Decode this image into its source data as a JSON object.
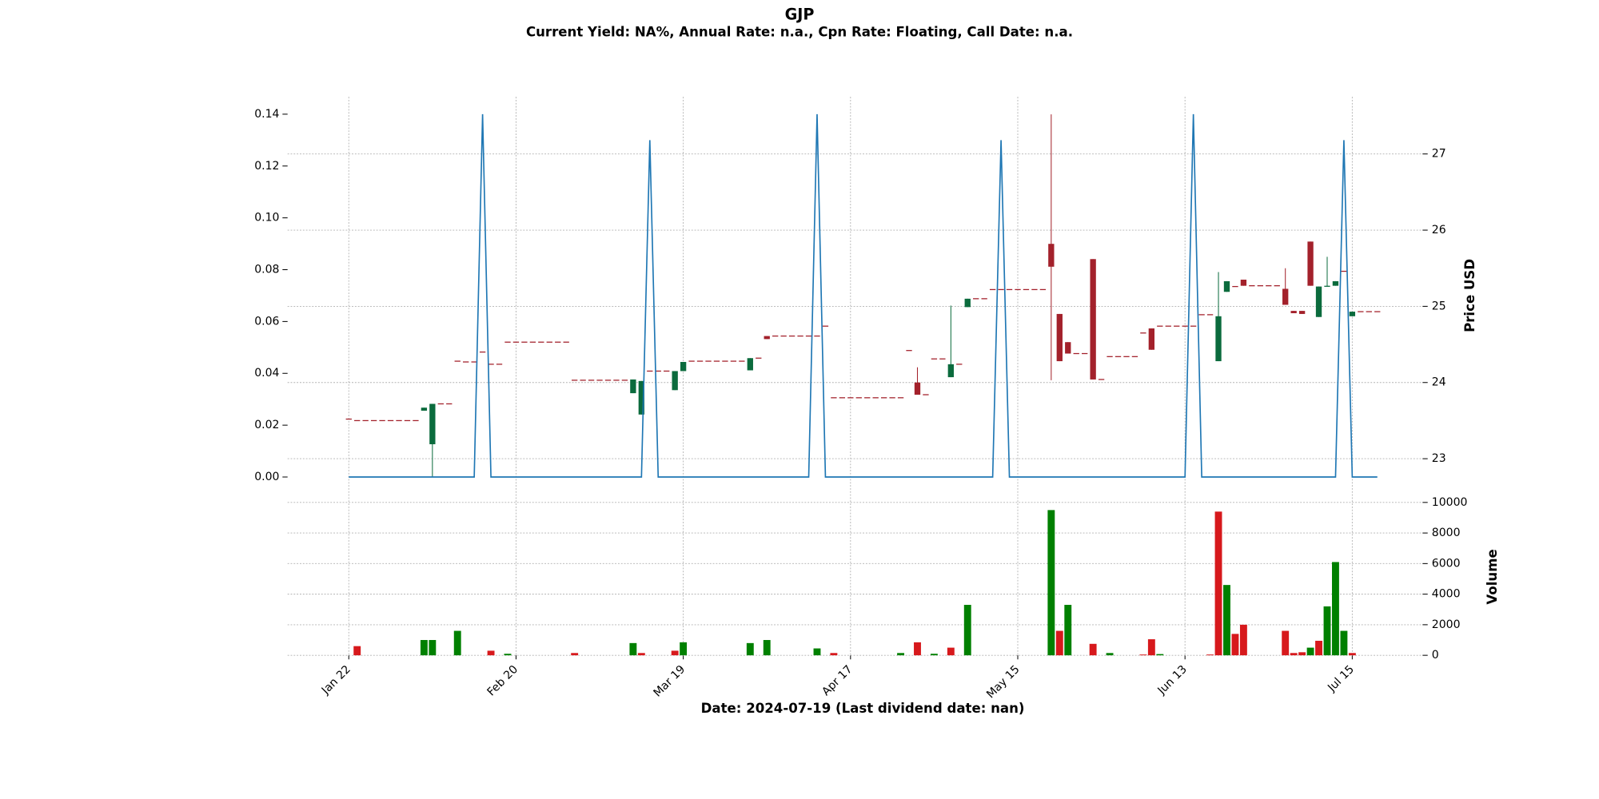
{
  "chart_data": [
    {
      "type": "candlestick",
      "title": "GJP",
      "subtitle": "Current Yield: NA%, Annual Rate: n.a., Cpn Rate: Floating, Call Date: n.a.",
      "y2label": "Price USD",
      "up_color": "#0b6b3d",
      "down_color": "#a3212b",
      "xlim": [
        -7.32,
        128.41
      ],
      "ylim": [
        -0.0047,
        0.1467
      ],
      "yticks": [
        {
          "value": 0,
          "label": "0.00"
        },
        {
          "value": 0.02,
          "label": "0.02"
        },
        {
          "value": 0.04,
          "label": "0.04"
        },
        {
          "value": 0.06,
          "label": "0.06"
        },
        {
          "value": 0.08,
          "label": "0.08"
        },
        {
          "value": 0.1,
          "label": "0.10"
        },
        {
          "value": 0.12,
          "label": "0.12"
        },
        {
          "value": 0.14,
          "label": "0.14"
        }
      ],
      "y2lim": [
        22.6,
        27.75
      ],
      "y2ticks": [
        23,
        24,
        25,
        26,
        27
      ],
      "grid": true,
      "x": [
        0,
        1,
        2,
        3,
        4,
        5,
        6,
        7,
        8,
        9,
        10,
        11,
        12,
        13,
        14,
        15,
        16,
        17,
        18,
        19,
        20,
        21,
        22,
        23,
        24,
        25,
        26,
        27,
        28,
        29,
        30,
        31,
        32,
        33,
        34,
        35,
        36,
        37,
        38,
        39,
        40,
        41,
        42,
        43,
        44,
        45,
        46,
        47,
        48,
        49,
        50,
        51,
        52,
        53,
        54,
        55,
        56,
        57,
        58,
        59,
        60,
        61,
        62,
        63,
        64,
        65,
        66,
        67,
        68,
        69,
        70,
        71,
        72,
        73,
        74,
        75,
        76,
        77,
        78,
        79,
        80,
        81,
        82,
        83,
        84,
        85,
        86,
        87,
        88,
        89,
        90,
        91,
        92,
        93,
        94,
        95,
        96,
        97,
        98,
        99,
        100,
        101,
        102,
        103,
        104,
        105,
        106,
        107,
        108,
        109,
        110,
        111,
        112,
        113,
        114,
        115,
        116,
        117,
        118,
        119,
        120,
        121,
        122,
        123
      ],
      "open": [
        23.52,
        23.5,
        23.5,
        23.5,
        23.5,
        23.5,
        23.5,
        23.5,
        23.5,
        23.63,
        23.19,
        23.72,
        23.72,
        24.28,
        24.27,
        24.27,
        24.4,
        24.24,
        24.24,
        24.53,
        24.53,
        24.53,
        24.53,
        24.53,
        24.53,
        24.53,
        24.53,
        24.03,
        24.03,
        24.03,
        24.03,
        24.03,
        24.03,
        24.03,
        23.86,
        23.58,
        24.15,
        24.15,
        24.15,
        23.9,
        24.15,
        24.28,
        24.28,
        24.28,
        24.28,
        24.28,
        24.28,
        24.28,
        24.16,
        24.32,
        24.61,
        24.61,
        24.61,
        24.61,
        24.61,
        24.61,
        24.61,
        24.74,
        23.8,
        23.8,
        23.8,
        23.8,
        23.8,
        23.8,
        23.8,
        23.8,
        23.8,
        24.42,
        24.0,
        23.84,
        24.31,
        24.31,
        24.07,
        24.24,
        24.99,
        25.1,
        25.1,
        25.22,
        25.22,
        25.22,
        25.22,
        25.22,
        25.22,
        25.22,
        25.82,
        24.9,
        24.53,
        24.38,
        24.38,
        25.62,
        24.04,
        24.34,
        24.34,
        24.34,
        24.34,
        24.65,
        24.71,
        24.74,
        24.74,
        24.74,
        24.74,
        24.74,
        24.89,
        24.89,
        24.28,
        25.19,
        25.26,
        25.35,
        25.27,
        25.27,
        25.27,
        25.27,
        25.23,
        24.94,
        24.94,
        25.85,
        24.86,
        25.26,
        25.27,
        25.46,
        24.87,
        24.93,
        24.93,
        24.93
      ],
      "high": [
        23.52,
        23.5,
        23.5,
        23.5,
        23.5,
        23.5,
        23.5,
        23.5,
        23.5,
        23.67,
        23.72,
        23.72,
        23.72,
        24.28,
        24.27,
        24.27,
        24.4,
        24.24,
        24.24,
        24.53,
        24.53,
        24.53,
        24.53,
        24.53,
        24.53,
        24.53,
        24.53,
        24.03,
        24.03,
        24.03,
        24.03,
        24.03,
        24.03,
        24.03,
        24.04,
        24.02,
        24.15,
        24.15,
        24.15,
        24.15,
        24.27,
        24.28,
        24.28,
        24.28,
        24.28,
        24.28,
        24.28,
        24.28,
        24.32,
        24.32,
        24.61,
        24.61,
        24.61,
        24.61,
        24.61,
        24.61,
        24.61,
        24.74,
        23.8,
        23.8,
        23.8,
        23.8,
        23.8,
        23.8,
        23.8,
        23.8,
        23.8,
        24.42,
        24.2,
        23.84,
        24.31,
        24.31,
        25.01,
        24.24,
        25.1,
        25.1,
        25.1,
        25.22,
        25.22,
        25.22,
        25.22,
        25.22,
        25.22,
        25.22,
        27.52,
        24.9,
        24.53,
        24.38,
        24.38,
        25.62,
        24.04,
        24.34,
        24.34,
        24.34,
        24.34,
        24.65,
        24.71,
        24.74,
        24.74,
        24.74,
        24.74,
        24.74,
        24.89,
        24.89,
        25.45,
        25.33,
        25.26,
        25.35,
        25.27,
        25.27,
        25.27,
        25.27,
        25.5,
        24.94,
        24.94,
        25.85,
        25.26,
        25.65,
        25.33,
        25.46,
        24.93,
        24.93,
        24.93,
        24.93
      ],
      "low": [
        23.52,
        23.5,
        23.5,
        23.5,
        23.5,
        23.5,
        23.5,
        23.5,
        23.5,
        23.63,
        22.76,
        23.72,
        23.72,
        24.28,
        24.27,
        24.27,
        24.4,
        24.24,
        24.24,
        24.53,
        24.53,
        24.53,
        24.53,
        24.53,
        24.53,
        24.53,
        24.53,
        24.03,
        24.03,
        24.03,
        24.03,
        24.03,
        24.03,
        24.03,
        23.86,
        23.58,
        24.15,
        24.15,
        24.15,
        23.9,
        24.15,
        24.28,
        24.28,
        24.28,
        24.28,
        24.28,
        24.28,
        24.28,
        24.16,
        24.32,
        24.57,
        24.61,
        24.61,
        24.61,
        24.61,
        24.61,
        24.61,
        24.74,
        23.8,
        23.8,
        23.8,
        23.8,
        23.8,
        23.8,
        23.8,
        23.8,
        23.8,
        24.42,
        23.84,
        23.84,
        24.31,
        24.31,
        24.07,
        24.24,
        24.99,
        25.1,
        25.1,
        25.22,
        25.22,
        25.22,
        25.22,
        25.22,
        25.22,
        25.22,
        24.03,
        24.28,
        24.38,
        24.38,
        24.38,
        24.04,
        24.04,
        24.34,
        24.34,
        24.34,
        24.34,
        24.65,
        24.43,
        24.74,
        24.74,
        24.74,
        24.74,
        24.74,
        24.89,
        24.89,
        24.28,
        25.19,
        25.26,
        25.27,
        25.27,
        25.27,
        25.27,
        25.27,
        25.02,
        24.91,
        24.9,
        25.27,
        24.86,
        25.26,
        25.27,
        25.46,
        24.87,
        24.93,
        24.93,
        24.93
      ],
      "close": [
        23.52,
        23.5,
        23.5,
        23.5,
        23.5,
        23.5,
        23.5,
        23.5,
        23.5,
        23.67,
        23.72,
        23.72,
        23.72,
        24.28,
        24.27,
        24.27,
        24.4,
        24.24,
        24.24,
        24.53,
        24.53,
        24.53,
        24.53,
        24.53,
        24.53,
        24.53,
        24.53,
        24.03,
        24.03,
        24.03,
        24.03,
        24.03,
        24.03,
        24.03,
        24.04,
        24.02,
        24.15,
        24.15,
        24.15,
        24.15,
        24.27,
        24.28,
        24.28,
        24.28,
        24.28,
        24.28,
        24.28,
        24.28,
        24.32,
        24.32,
        24.57,
        24.61,
        24.61,
        24.61,
        24.61,
        24.61,
        24.61,
        24.74,
        23.8,
        23.8,
        23.8,
        23.8,
        23.8,
        23.8,
        23.8,
        23.8,
        23.8,
        24.42,
        23.84,
        23.84,
        24.31,
        24.31,
        24.24,
        24.24,
        25.1,
        25.1,
        25.1,
        25.22,
        25.22,
        25.22,
        25.22,
        25.22,
        25.22,
        25.22,
        25.52,
        24.28,
        24.38,
        24.38,
        24.38,
        24.04,
        24.04,
        24.34,
        24.34,
        24.34,
        24.34,
        24.65,
        24.43,
        24.74,
        24.74,
        24.74,
        24.74,
        24.74,
        24.89,
        24.89,
        24.87,
        25.33,
        25.26,
        25.27,
        25.27,
        25.27,
        25.27,
        25.27,
        25.02,
        24.91,
        24.9,
        25.27,
        25.26,
        25.27,
        25.33,
        25.46,
        24.93,
        24.93,
        24.93,
        24.93
      ],
      "series": [
        {
          "type": "line",
          "axis": "y",
          "color": "#1f77b4",
          "x": [
            0,
            15,
            16,
            17,
            35,
            36,
            37,
            55,
            56,
            57,
            77,
            78,
            79,
            100,
            101,
            102,
            118,
            119,
            120,
            123
          ],
          "values": [
            0,
            0,
            0.14,
            0,
            0,
            0.13,
            0,
            0,
            0.14,
            0,
            0,
            0.13,
            0,
            0,
            0.14,
            0,
            0,
            0.13,
            0,
            0
          ]
        }
      ]
    },
    {
      "type": "bar",
      "xlabel": "Date: 2024-07-19   (Last dividend date: nan)",
      "ylabel": "Volume",
      "xlim": [
        -7.32,
        128.41
      ],
      "xticks": [
        {
          "value": 0,
          "label": "Jan 22"
        },
        {
          "value": 20,
          "label": "Feb 20"
        },
        {
          "value": 40,
          "label": "Mar 19"
        },
        {
          "value": 60,
          "label": "Apr 17"
        },
        {
          "value": 80,
          "label": "May 15"
        },
        {
          "value": 100,
          "label": "Jun 13"
        },
        {
          "value": 120,
          "label": "Jul 15"
        }
      ],
      "ylim": [
        0,
        10000
      ],
      "yticks": [
        0,
        2000,
        4000,
        6000,
        8000,
        10000
      ],
      "grid": true,
      "x": [
        1,
        9,
        10,
        13,
        17,
        19,
        27,
        34,
        35,
        39,
        40,
        48,
        50,
        56,
        58,
        66,
        68,
        70,
        72,
        74,
        84,
        85,
        86,
        89,
        91,
        95,
        96,
        97,
        103,
        104,
        105,
        106,
        107,
        112,
        113,
        114,
        115,
        116,
        117,
        118,
        119,
        120
      ],
      "values": [
        600,
        1000,
        1000,
        1600,
        300,
        100,
        150,
        800,
        150,
        300,
        850,
        800,
        1000,
        450,
        150,
        150,
        850,
        100,
        500,
        3300,
        9500,
        1600,
        3300,
        750,
        150,
        50,
        1050,
        80,
        50,
        9400,
        4600,
        1400,
        2000,
        1600,
        150,
        200,
        500,
        950,
        3200,
        6100,
        1600,
        150
      ],
      "colors": [
        "#d7191c",
        "#008000",
        "#008000",
        "#008000",
        "#d7191c",
        "#008000",
        "#d7191c",
        "#008000",
        "#d7191c",
        "#d7191c",
        "#008000",
        "#008000",
        "#008000",
        "#008000",
        "#d7191c",
        "#008000",
        "#d7191c",
        "#008000",
        "#d7191c",
        "#008000",
        "#008000",
        "#d7191c",
        "#008000",
        "#d7191c",
        "#008000",
        "#d7191c",
        "#d7191c",
        "#008000",
        "#d7191c",
        "#d7191c",
        "#008000",
        "#d7191c",
        "#d7191c",
        "#d7191c",
        "#d7191c",
        "#d7191c",
        "#008000",
        "#d7191c",
        "#008000",
        "#008000",
        "#008000",
        "#d7191c"
      ]
    }
  ]
}
